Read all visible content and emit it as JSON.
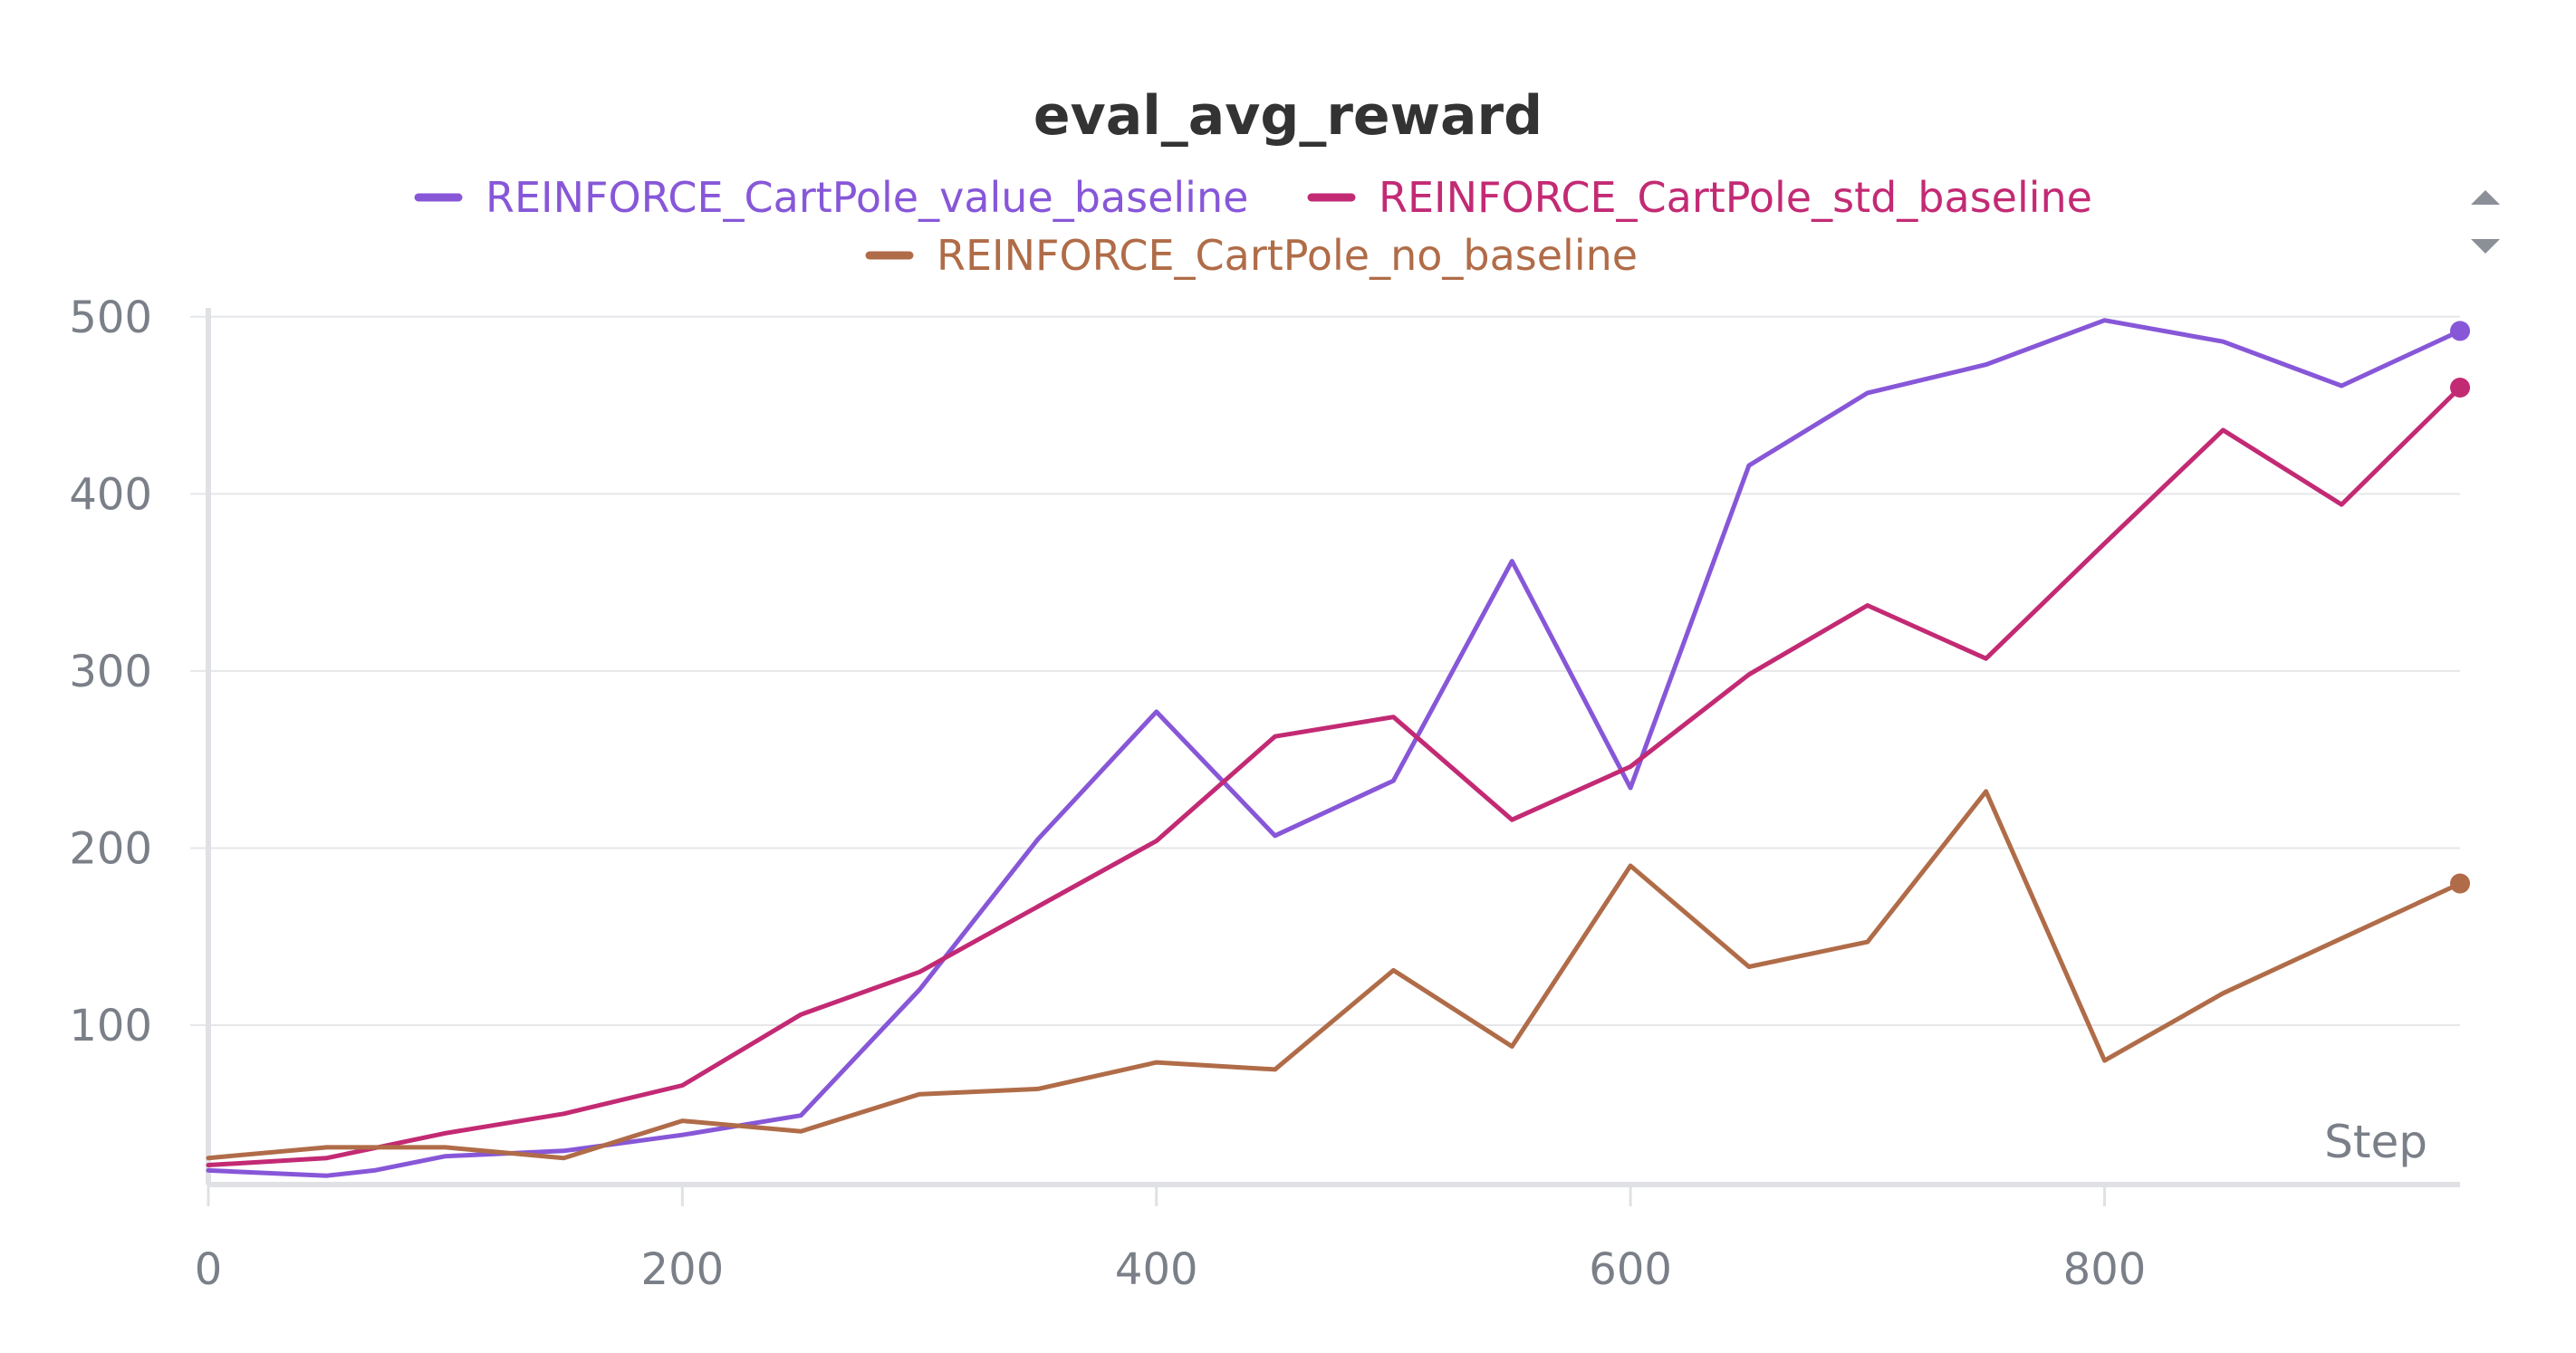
{
  "chart_data": {
    "type": "line",
    "title": "eval_avg_reward",
    "xlabel": "Step",
    "ylabel": "",
    "xlim": [
      0,
      950
    ],
    "ylim": [
      10,
      505
    ],
    "x_ticks": [
      0,
      200,
      400,
      600,
      800
    ],
    "y_ticks": [
      100,
      200,
      300,
      400,
      500
    ],
    "grid": true,
    "legend_position": "top-center",
    "series": [
      {
        "name": "REINFORCE_CartPole_value_baseline",
        "color": "#8757d8",
        "x": [
          0,
          50,
          70,
          100,
          150,
          200,
          250,
          300,
          350,
          400,
          450,
          500,
          550,
          600,
          650,
          700,
          750,
          800,
          850,
          900,
          950
        ],
        "y": [
          18,
          15,
          18,
          26,
          29,
          38,
          49,
          120,
          205,
          277,
          207,
          238,
          362,
          234,
          416,
          457,
          473,
          498,
          486,
          461,
          492
        ]
      },
      {
        "name": "REINFORCE_CartPole_std_baseline",
        "color": "#c32a74",
        "x": [
          0,
          50,
          100,
          150,
          200,
          250,
          300,
          350,
          400,
          450,
          500,
          550,
          600,
          650,
          700,
          750,
          800,
          850,
          900,
          950
        ],
        "y": [
          21,
          25,
          39,
          50,
          66,
          106,
          130,
          167,
          204,
          263,
          274,
          216,
          246,
          298,
          337,
          307,
          372,
          436,
          394,
          460
        ]
      },
      {
        "name": "REINFORCE_CartPole_no_baseline",
        "color": "#b06c48",
        "x": [
          0,
          50,
          100,
          150,
          200,
          250,
          300,
          350,
          400,
          450,
          500,
          550,
          600,
          650,
          700,
          750,
          800,
          850,
          900,
          950
        ],
        "y": [
          25,
          31,
          31,
          25,
          46,
          40,
          61,
          64,
          79,
          75,
          131,
          88,
          190,
          133,
          147,
          232,
          80,
          118,
          149,
          180
        ]
      }
    ]
  }
}
